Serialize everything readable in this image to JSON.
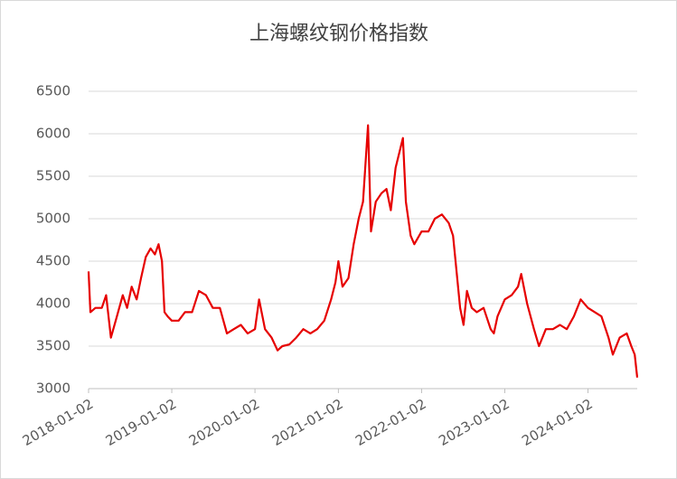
{
  "chart_data": {
    "type": "line",
    "title": "上海螺纹钢价格指数",
    "x": [
      "2018-01-02",
      "2018-01-10",
      "2018-02-01",
      "2018-03-01",
      "2018-03-20",
      "2018-04-10",
      "2018-05-01",
      "2018-06-01",
      "2018-06-20",
      "2018-07-10",
      "2018-08-01",
      "2018-08-20",
      "2018-09-10",
      "2018-10-01",
      "2018-10-20",
      "2018-11-05",
      "2018-11-20",
      "2018-12-01",
      "2018-12-15",
      "2019-01-02",
      "2019-02-01",
      "2019-03-01",
      "2019-04-01",
      "2019-05-01",
      "2019-06-01",
      "2019-07-01",
      "2019-08-01",
      "2019-09-01",
      "2019-10-01",
      "2019-11-01",
      "2019-12-01",
      "2020-01-02",
      "2020-01-20",
      "2020-02-15",
      "2020-03-15",
      "2020-04-10",
      "2020-05-01",
      "2020-06-01",
      "2020-07-01",
      "2020-08-01",
      "2020-09-01",
      "2020-10-01",
      "2020-11-01",
      "2020-12-01",
      "2020-12-20",
      "2021-01-02",
      "2021-01-20",
      "2021-02-15",
      "2021-03-10",
      "2021-04-01",
      "2021-04-20",
      "2021-05-12",
      "2021-05-25",
      "2021-06-15",
      "2021-07-10",
      "2021-08-01",
      "2021-08-20",
      "2021-09-10",
      "2021-10-12",
      "2021-10-25",
      "2021-11-15",
      "2021-12-01",
      "2022-01-02",
      "2022-02-01",
      "2022-03-01",
      "2022-04-01",
      "2022-05-01",
      "2022-05-20",
      "2022-06-20",
      "2022-07-05",
      "2022-07-20",
      "2022-08-10",
      "2022-09-01",
      "2022-10-01",
      "2022-11-01",
      "2022-11-15",
      "2022-12-01",
      "2023-01-02",
      "2023-02-01",
      "2023-03-01",
      "2023-03-15",
      "2023-04-10",
      "2023-05-10",
      "2023-06-01",
      "2023-07-01",
      "2023-08-01",
      "2023-09-01",
      "2023-10-01",
      "2023-11-01",
      "2023-12-01",
      "2024-01-02",
      "2024-02-01",
      "2024-03-01",
      "2024-04-01",
      "2024-04-20",
      "2024-05-20",
      "2024-06-20",
      "2024-07-10",
      "2024-07-25",
      "2024-08-05"
    ],
    "series": [
      {
        "name": "上海螺纹钢价格指数",
        "color": "#e60000",
        "values": [
          4380,
          3900,
          3950,
          3950,
          4100,
          3600,
          3800,
          4100,
          3950,
          4200,
          4050,
          4300,
          4550,
          4650,
          4580,
          4700,
          4500,
          3900,
          3850,
          3800,
          3800,
          3900,
          3900,
          4150,
          4100,
          3950,
          3950,
          3650,
          3700,
          3750,
          3650,
          3700,
          4050,
          3700,
          3600,
          3450,
          3500,
          3520,
          3600,
          3700,
          3650,
          3700,
          3800,
          4050,
          4250,
          4500,
          4200,
          4300,
          4700,
          5000,
          5200,
          6100,
          4850,
          5200,
          5300,
          5350,
          5100,
          5600,
          5950,
          5200,
          4800,
          4700,
          4850,
          4850,
          5000,
          5050,
          4950,
          4800,
          3950,
          3750,
          4150,
          3950,
          3900,
          3950,
          3700,
          3650,
          3850,
          4050,
          4100,
          4200,
          4350,
          4000,
          3700,
          3500,
          3700,
          3700,
          3750,
          3700,
          3850,
          4050,
          3950,
          3900,
          3850,
          3600,
          3400,
          3600,
          3650,
          3500,
          3400,
          3130
        ]
      }
    ],
    "xlim": [
      "2018-01-02",
      "2024-08-05"
    ],
    "xticks": [
      "2018-01-02",
      "2019-01-02",
      "2020-01-02",
      "2021-01-02",
      "2022-01-02",
      "2023-01-02",
      "2024-01-02"
    ],
    "ylim": [
      3000,
      6500
    ],
    "yticks": [
      3000,
      3500,
      4000,
      4500,
      5000,
      5500,
      6000,
      6500
    ],
    "grid": true
  }
}
